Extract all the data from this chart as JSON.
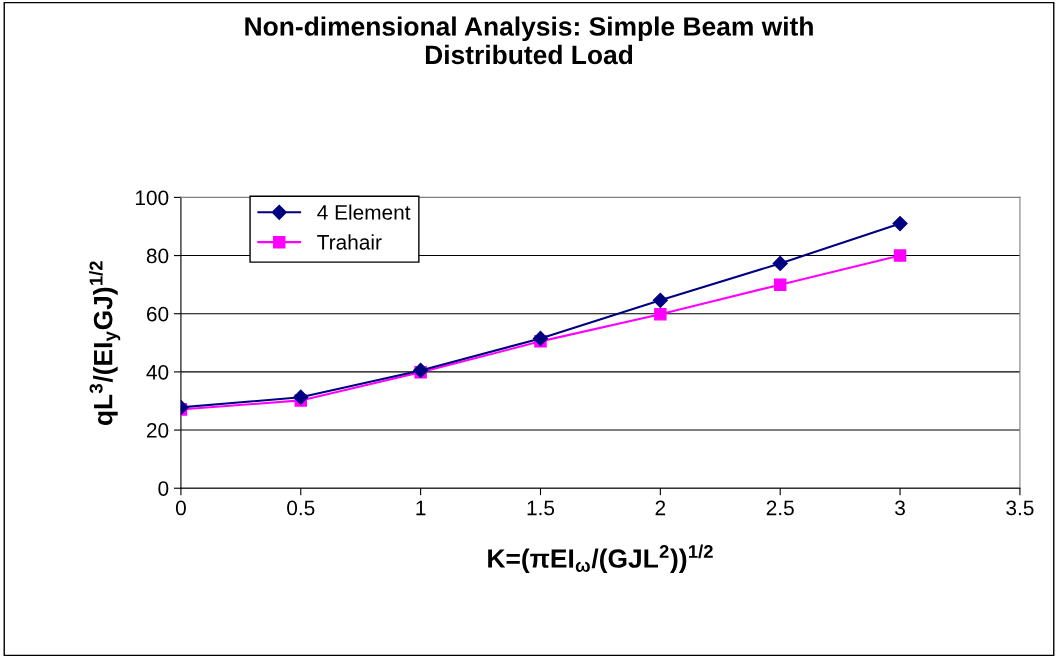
{
  "chart_data": {
    "type": "line",
    "title": "Non-dimensional Analysis: Simple Beam with\nDistributed Load",
    "xlabel": "K=(πEI$_{ω}$/(GJL$^{2}$))$^{1/2}$",
    "ylabel": "qL$^{3}$/(EI$_{y}$GJ)$^{1/2}$",
    "x": [
      0,
      0.5,
      1,
      1.5,
      2,
      2.5,
      3
    ],
    "series": [
      {
        "name": "4 Element",
        "color": "#000080",
        "marker": "diamond",
        "values": [
          27.8,
          31.3,
          40.5,
          51.5,
          64.6,
          77.3,
          91
        ]
      },
      {
        "name": "Trahair",
        "color": "#ff00ff",
        "marker": "square",
        "values": [
          27.1,
          30.2,
          39.9,
          50.5,
          59.8,
          70,
          80
        ]
      }
    ],
    "xlim": [
      0,
      3.5
    ],
    "xticks": [
      0,
      0.5,
      1,
      1.5,
      2,
      2.5,
      3,
      3.5
    ],
    "ylim": [
      0,
      100
    ],
    "yticks": [
      0,
      20,
      40,
      60,
      80,
      100
    ],
    "grid": "y",
    "legend": "top left",
    "line_style": "solid"
  }
}
